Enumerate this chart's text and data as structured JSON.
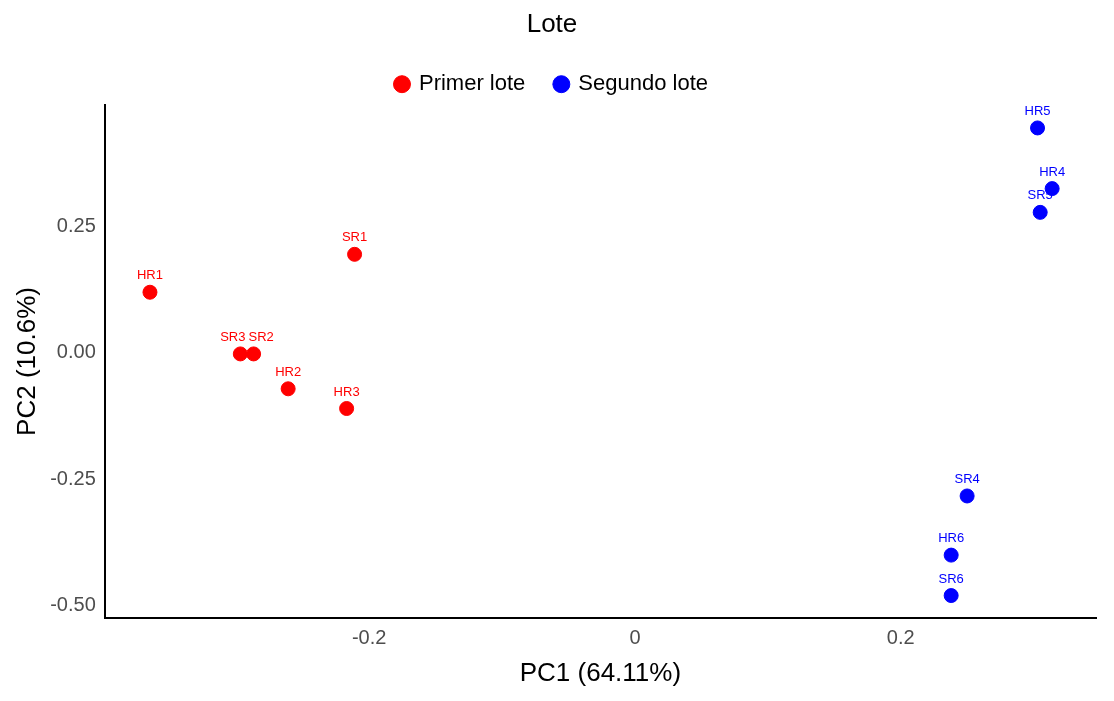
{
  "chart_data": {
    "type": "scatter",
    "xlabel": "PC1 (64.11%)",
    "ylabel": "PC2 (10.6%)",
    "legend_title": "Lote",
    "legend": "top",
    "grid": false,
    "marker": "circle",
    "xlim": [
      -0.399,
      0.347
    ],
    "xticks": [
      -0.2,
      0,
      0.2
    ],
    "ylim": [
      -0.524,
      0.49
    ],
    "yticks": [
      {
        "value": -0.5,
        "label": "-0.50"
      },
      {
        "value": -0.25,
        "label": "-0.25"
      },
      {
        "value": 0,
        "label": "0.00"
      },
      {
        "value": 0.25,
        "label": "0.25"
      }
    ],
    "series": [
      {
        "name": "Primer lote",
        "color": "#ff0000",
        "x": [
          -0.365,
          -0.297,
          -0.287,
          -0.261,
          -0.217,
          -0.211
        ],
        "values": [
          0.12,
          -0.002,
          -0.002,
          -0.071,
          -0.11,
          0.195
        ],
        "value_labels": [
          "HR1",
          "SR3",
          "SR2",
          "HR2",
          "HR3",
          "SR1"
        ]
      },
      {
        "name": "Segundo lote",
        "color": "#0000ff",
        "x": [
          0.303,
          0.314,
          0.305,
          0.25,
          0.238,
          0.238
        ],
        "values": [
          0.445,
          0.325,
          0.278,
          -0.283,
          -0.4,
          -0.48
        ],
        "value_labels": [
          "HR5",
          "HR4",
          "SR5",
          "SR4",
          "HR6",
          "SR6"
        ]
      }
    ]
  }
}
